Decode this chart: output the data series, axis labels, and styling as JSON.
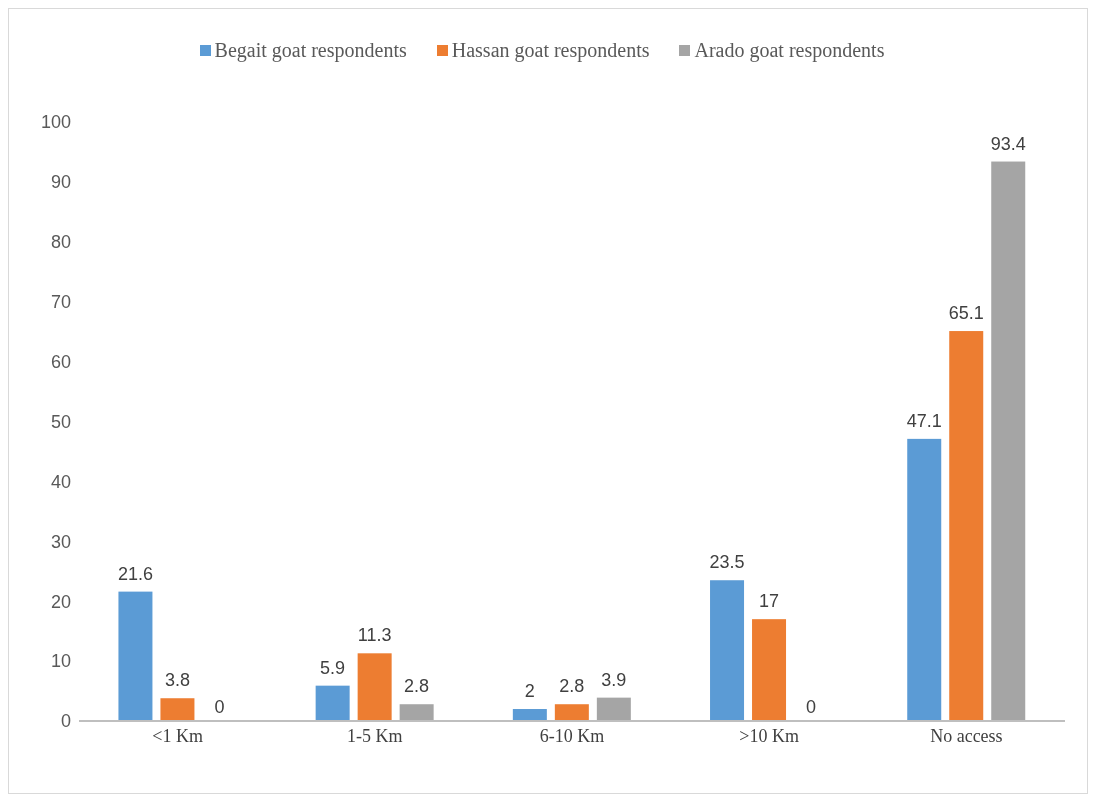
{
  "chart_data": {
    "type": "bar",
    "categories": [
      "<1 Km",
      "1-5 Km",
      "6-10 Km",
      ">10 Km",
      "No access"
    ],
    "series": [
      {
        "name": "Begait goat respondents",
        "color": "#5b9bd5",
        "values": [
          21.6,
          5.9,
          2,
          23.5,
          47.1
        ]
      },
      {
        "name": "Hassan goat respondents",
        "color": "#ed7d31",
        "values": [
          3.8,
          11.3,
          2.8,
          17,
          65.1
        ]
      },
      {
        "name": "Arado goat respondents",
        "color": "#a5a5a5",
        "values": [
          0,
          2.8,
          3.9,
          0,
          93.4
        ]
      }
    ],
    "ylim": [
      0,
      100
    ],
    "yticks": [
      0,
      10,
      20,
      30,
      40,
      50,
      60,
      70,
      80,
      90,
      100
    ],
    "grid": false,
    "legend": "top",
    "data_labels": true
  }
}
